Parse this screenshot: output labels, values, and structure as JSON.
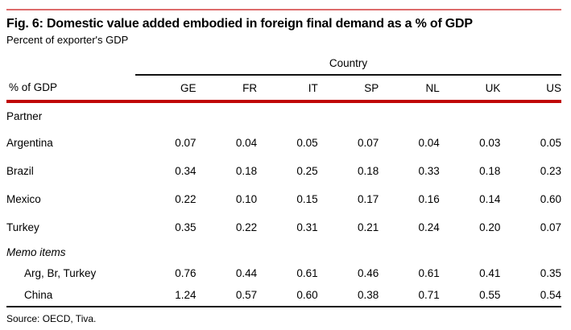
{
  "figure": {
    "title": "Fig. 6: Domestic value added embodied in foreign final demand as a % of GDP",
    "subtitle": "Percent of exporter's GDP",
    "source": "Source: OECD, Tiva."
  },
  "chart_data": {
    "type": "table",
    "title": "Fig. 6: Domestic value added embodied in foreign final demand as a % of GDP",
    "subtitle": "Percent of exporter's GDP",
    "column_group_label": "Country",
    "corner_label": "% of GDP",
    "columns": [
      "GE",
      "FR",
      "IT",
      "SP",
      "NL",
      "UK",
      "US"
    ],
    "section_label": "Partner",
    "rows": [
      {
        "label": "Argentina",
        "values": [
          "0.07",
          "0.04",
          "0.05",
          "0.07",
          "0.04",
          "0.03",
          "0.05"
        ]
      },
      {
        "label": "Brazil",
        "values": [
          "0.34",
          "0.18",
          "0.25",
          "0.18",
          "0.33",
          "0.18",
          "0.23"
        ]
      },
      {
        "label": "Mexico",
        "values": [
          "0.22",
          "0.10",
          "0.15",
          "0.17",
          "0.16",
          "0.14",
          "0.60"
        ]
      },
      {
        "label": "Turkey",
        "values": [
          "0.35",
          "0.22",
          "0.31",
          "0.21",
          "0.24",
          "0.20",
          "0.07"
        ]
      }
    ],
    "memo_label": "Memo items",
    "memo_rows": [
      {
        "label": "Arg, Br, Turkey",
        "values": [
          "0.76",
          "0.44",
          "0.61",
          "0.46",
          "0.61",
          "0.41",
          "0.35"
        ]
      },
      {
        "label": "China",
        "values": [
          "1.24",
          "0.57",
          "0.60",
          "0.38",
          "0.71",
          "0.55",
          "0.54"
        ]
      }
    ],
    "source": "Source: OECD, Tiva."
  },
  "colors": {
    "accent_red": "#c00606",
    "top_rule_red": "#dd6b6b",
    "rule_black": "#111111"
  }
}
